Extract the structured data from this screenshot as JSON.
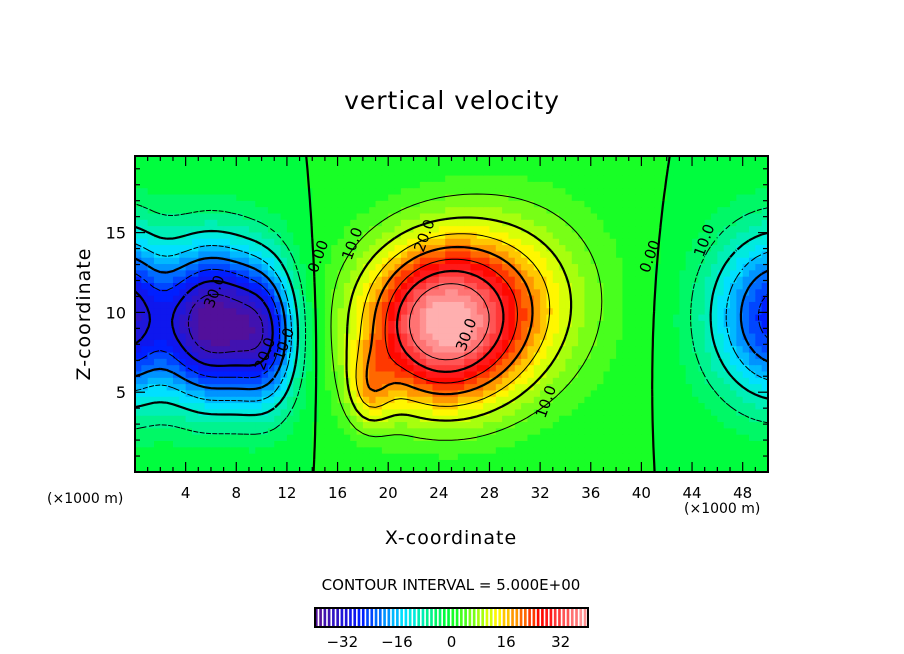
{
  "chart_data": {
    "type": "heatmap",
    "subtype": "filled-contour",
    "title": "vertical velocity",
    "xlabel": "X-coordinate",
    "ylabel": "Z-coordinate",
    "x_unit": "(×1000 m)",
    "xlim": [
      0,
      50
    ],
    "ylim": [
      0,
      19.8
    ],
    "x_ticks": [
      4,
      8,
      12,
      16,
      20,
      24,
      28,
      32,
      36,
      40,
      44,
      48
    ],
    "y_ticks": [
      5,
      10,
      15
    ],
    "contour_interval_label": "CONTOUR INTERVAL = 5.000E+00",
    "contour_interval": 5.0,
    "contour_labels": [
      {
        "text": "0.00",
        "x": 14.5,
        "y": 13.5
      },
      {
        "text": "10.0",
        "x": 17.2,
        "y": 14.3
      },
      {
        "text": "20.0",
        "x": 22.9,
        "y": 14.8
      },
      {
        "text": "30.0",
        "x": 26.2,
        "y": 8.6
      },
      {
        "text": "10.0",
        "x": 32.5,
        "y": 4.4
      },
      {
        "text": "0.00",
        "x": 40.7,
        "y": 13.5
      },
      {
        "text": "10.0",
        "x": 45.0,
        "y": 14.5
      },
      {
        "text": "30.0",
        "x": 6.3,
        "y": 11.3
      },
      {
        "text": "20.0",
        "x": 10.3,
        "y": 7.4
      },
      {
        "text": "10.0",
        "x": 11.8,
        "y": 8.0
      }
    ],
    "features": [
      {
        "name": "downdraft-left",
        "x": 6,
        "z": 8.5,
        "value": -37
      },
      {
        "name": "updraft-main",
        "x": 23.5,
        "z": 8.3,
        "value": 37
      },
      {
        "name": "updraft-secondary",
        "x": 18.5,
        "z": 5,
        "value": 27
      },
      {
        "name": "downdraft-right",
        "x": 50,
        "z": 9.5,
        "value": -25
      }
    ],
    "colorbar": {
      "min": -40,
      "max": 40,
      "ticks": [
        -32,
        -16,
        0,
        16,
        32
      ],
      "colors": [
        "#5a0f91",
        "#0019ff",
        "#00e6ff",
        "#00ff2a",
        "#ffff00",
        "#ff0000",
        "#ffa0a0"
      ]
    }
  }
}
